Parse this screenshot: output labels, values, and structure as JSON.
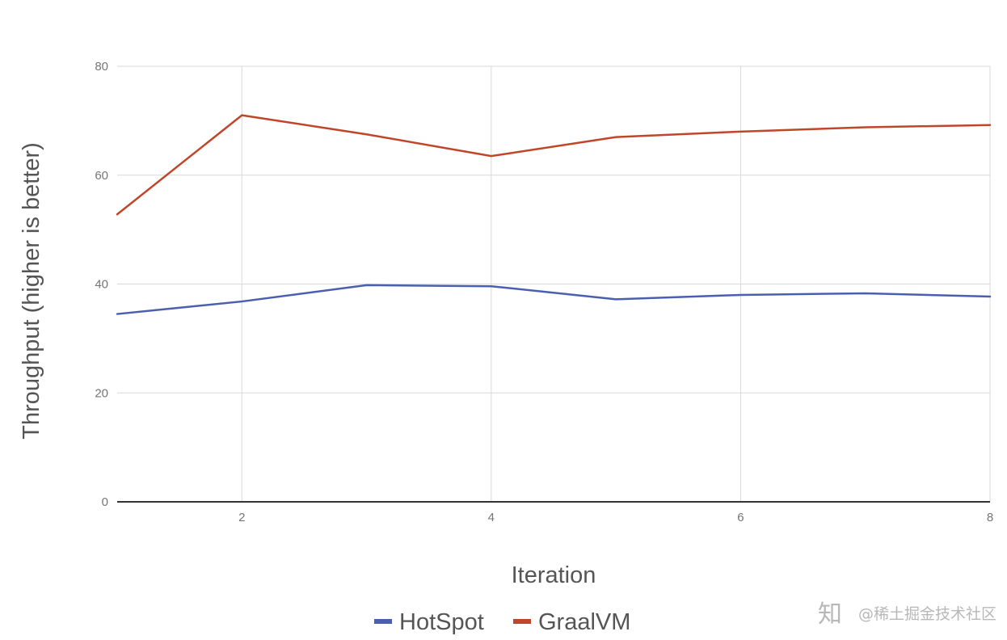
{
  "chart_data": {
    "type": "line",
    "title": "",
    "xlabel": "Iteration",
    "ylabel": "Throughput (higher is better)",
    "x": [
      1,
      2,
      3,
      4,
      5,
      6,
      7,
      8
    ],
    "xlim": [
      1,
      8
    ],
    "ylim": [
      0,
      80
    ],
    "xticks": [
      "2",
      "4",
      "6",
      "8"
    ],
    "yticks": [
      "0",
      "20",
      "40",
      "60",
      "80"
    ],
    "grid": true,
    "legend_position": "bottom",
    "series": [
      {
        "name": "HotSpot",
        "color": "#4a5fb0",
        "values": [
          34.5,
          36.8,
          39.8,
          39.6,
          37.2,
          38.0,
          38.3,
          37.7
        ]
      },
      {
        "name": "GraalVM",
        "color": "#c0462a",
        "values": [
          52.8,
          71.0,
          67.5,
          63.5,
          67.0,
          68.0,
          68.8,
          69.2
        ]
      }
    ]
  },
  "watermark": {
    "glyph": "知",
    "text": "@稀土掘金技术社区"
  }
}
